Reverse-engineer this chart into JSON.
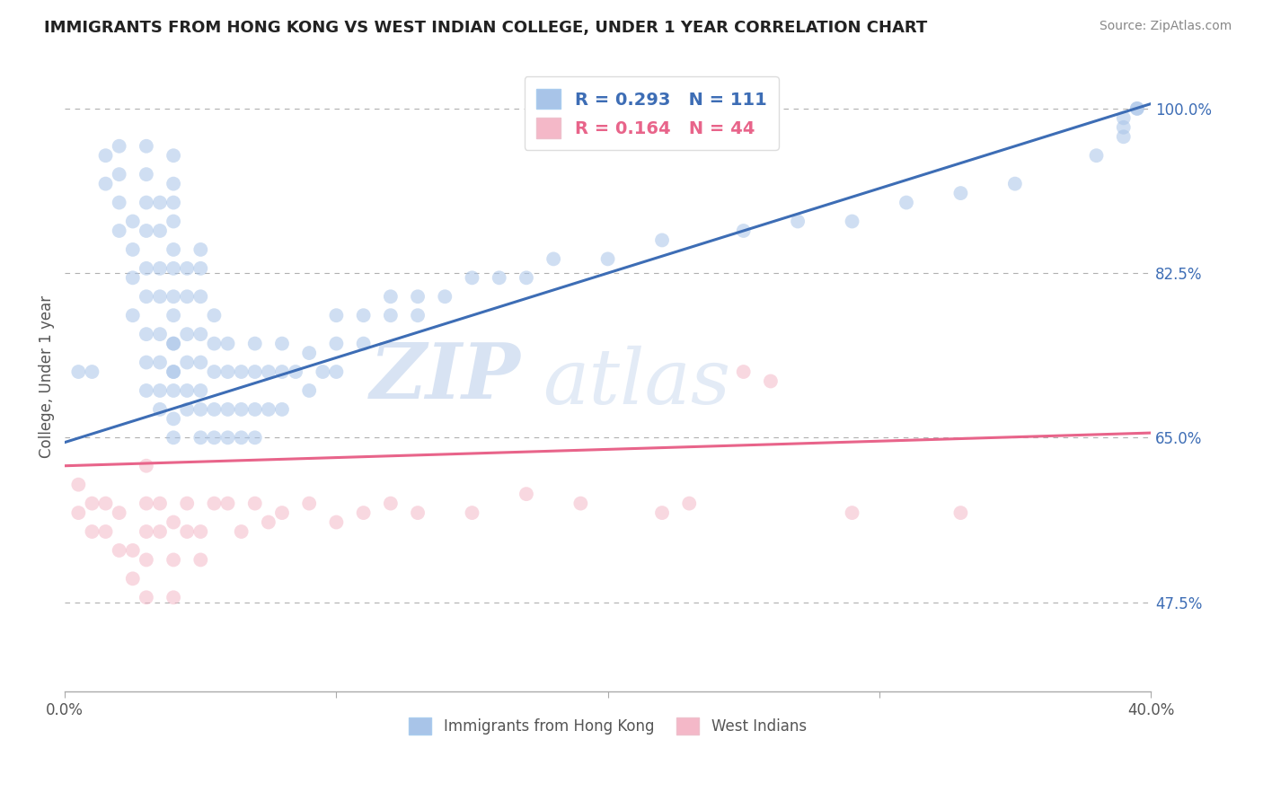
{
  "title": "IMMIGRANTS FROM HONG KONG VS WEST INDIAN COLLEGE, UNDER 1 YEAR CORRELATION CHART",
  "source": "Source: ZipAtlas.com",
  "ylabel": "College, Under 1 year",
  "xlim": [
    0.0,
    0.4
  ],
  "ylim": [
    0.38,
    1.05
  ],
  "xticks": [
    0.0,
    0.1,
    0.2,
    0.3,
    0.4
  ],
  "xticklabels": [
    "0.0%",
    "",
    "",
    "",
    "40.0%"
  ],
  "yticks_right": [
    1.0,
    0.825,
    0.65,
    0.475
  ],
  "yticks_right_labels": [
    "100.0%",
    "82.5%",
    "65.0%",
    "47.5%"
  ],
  "blue_R": 0.293,
  "blue_N": 111,
  "pink_R": 0.164,
  "pink_N": 44,
  "blue_color": "#a8c4e8",
  "pink_color": "#f4b8c8",
  "blue_line_color": "#3d6db5",
  "pink_line_color": "#e8648a",
  "legend_label_blue": "Immigrants from Hong Kong",
  "legend_label_pink": "West Indians",
  "watermark_zip": "ZIP",
  "watermark_atlas": "atlas",
  "blue_line_x0": 0.0,
  "blue_line_y0": 0.645,
  "blue_line_x1": 0.4,
  "blue_line_y1": 1.005,
  "pink_line_x0": 0.0,
  "pink_line_y0": 0.62,
  "pink_line_x1": 0.4,
  "pink_line_y1": 0.655,
  "blue_scatter_x": [
    0.005,
    0.01,
    0.015,
    0.015,
    0.02,
    0.02,
    0.02,
    0.02,
    0.025,
    0.025,
    0.025,
    0.025,
    0.03,
    0.03,
    0.03,
    0.03,
    0.03,
    0.03,
    0.03,
    0.03,
    0.03,
    0.035,
    0.035,
    0.035,
    0.035,
    0.035,
    0.035,
    0.035,
    0.035,
    0.04,
    0.04,
    0.04,
    0.04,
    0.04,
    0.04,
    0.04,
    0.04,
    0.04,
    0.04,
    0.04,
    0.04,
    0.04,
    0.04,
    0.04,
    0.045,
    0.045,
    0.045,
    0.045,
    0.045,
    0.045,
    0.05,
    0.05,
    0.05,
    0.05,
    0.05,
    0.05,
    0.05,
    0.05,
    0.055,
    0.055,
    0.055,
    0.055,
    0.055,
    0.06,
    0.06,
    0.06,
    0.06,
    0.065,
    0.065,
    0.065,
    0.07,
    0.07,
    0.07,
    0.07,
    0.075,
    0.075,
    0.08,
    0.08,
    0.08,
    0.085,
    0.09,
    0.09,
    0.095,
    0.1,
    0.1,
    0.1,
    0.11,
    0.11,
    0.12,
    0.12,
    0.13,
    0.13,
    0.14,
    0.15,
    0.16,
    0.17,
    0.18,
    0.2,
    0.22,
    0.25,
    0.27,
    0.29,
    0.31,
    0.33,
    0.35,
    0.38,
    0.39,
    0.39,
    0.39,
    0.395,
    0.395
  ],
  "blue_scatter_y": [
    0.72,
    0.72,
    0.92,
    0.95,
    0.87,
    0.9,
    0.93,
    0.96,
    0.78,
    0.82,
    0.85,
    0.88,
    0.7,
    0.73,
    0.76,
    0.8,
    0.83,
    0.87,
    0.9,
    0.93,
    0.96,
    0.68,
    0.7,
    0.73,
    0.76,
    0.8,
    0.83,
    0.87,
    0.9,
    0.65,
    0.67,
    0.7,
    0.72,
    0.75,
    0.78,
    0.8,
    0.83,
    0.85,
    0.88,
    0.9,
    0.92,
    0.95,
    0.72,
    0.75,
    0.68,
    0.7,
    0.73,
    0.76,
    0.8,
    0.83,
    0.65,
    0.68,
    0.7,
    0.73,
    0.76,
    0.8,
    0.83,
    0.85,
    0.65,
    0.68,
    0.72,
    0.75,
    0.78,
    0.65,
    0.68,
    0.72,
    0.75,
    0.65,
    0.68,
    0.72,
    0.65,
    0.68,
    0.72,
    0.75,
    0.68,
    0.72,
    0.68,
    0.72,
    0.75,
    0.72,
    0.7,
    0.74,
    0.72,
    0.72,
    0.75,
    0.78,
    0.75,
    0.78,
    0.78,
    0.8,
    0.78,
    0.8,
    0.8,
    0.82,
    0.82,
    0.82,
    0.84,
    0.84,
    0.86,
    0.87,
    0.88,
    0.88,
    0.9,
    0.91,
    0.92,
    0.95,
    0.97,
    0.98,
    0.99,
    1.0,
    1.0
  ],
  "pink_scatter_x": [
    0.005,
    0.005,
    0.01,
    0.01,
    0.015,
    0.015,
    0.02,
    0.02,
    0.025,
    0.025,
    0.03,
    0.03,
    0.03,
    0.03,
    0.03,
    0.035,
    0.035,
    0.04,
    0.04,
    0.04,
    0.045,
    0.045,
    0.05,
    0.05,
    0.055,
    0.06,
    0.065,
    0.07,
    0.075,
    0.08,
    0.09,
    0.1,
    0.11,
    0.12,
    0.13,
    0.15,
    0.17,
    0.19,
    0.22,
    0.23,
    0.25,
    0.26,
    0.29,
    0.33
  ],
  "pink_scatter_y": [
    0.57,
    0.6,
    0.55,
    0.58,
    0.55,
    0.58,
    0.53,
    0.57,
    0.5,
    0.53,
    0.48,
    0.52,
    0.55,
    0.58,
    0.62,
    0.55,
    0.58,
    0.48,
    0.52,
    0.56,
    0.55,
    0.58,
    0.52,
    0.55,
    0.58,
    0.58,
    0.55,
    0.58,
    0.56,
    0.57,
    0.58,
    0.56,
    0.57,
    0.58,
    0.57,
    0.57,
    0.59,
    0.58,
    0.57,
    0.58,
    0.72,
    0.71,
    0.57,
    0.57
  ]
}
